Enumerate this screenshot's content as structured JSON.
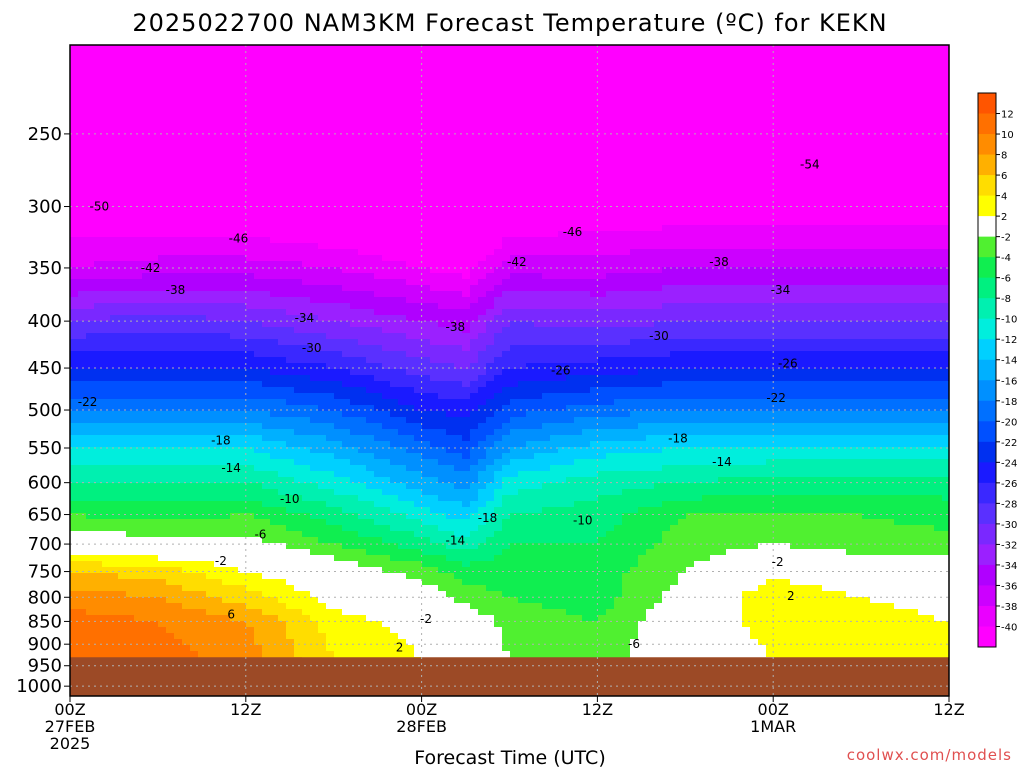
{
  "chart_data": {
    "type": "heatmap",
    "title": "2025022700 NAM3KM Forecast Temperature (ºC) for KEKN",
    "xlabel": "Forecast Time (UTC)",
    "ylabel": "",
    "x_ticks": [
      {
        "time_hours": 0,
        "lines": [
          "00Z",
          "27FEB",
          "2025"
        ]
      },
      {
        "time_hours": 12,
        "lines": [
          "12Z"
        ]
      },
      {
        "time_hours": 24,
        "lines": [
          "00Z",
          "28FEB"
        ]
      },
      {
        "time_hours": 36,
        "lines": [
          "12Z"
        ]
      },
      {
        "time_hours": 48,
        "lines": [
          "00Z",
          "1MAR"
        ]
      },
      {
        "time_hours": 60,
        "lines": [
          "12Z"
        ]
      }
    ],
    "xlim": [
      0,
      60
    ],
    "y_ticks": [
      250,
      300,
      350,
      400,
      450,
      500,
      550,
      600,
      650,
      700,
      750,
      800,
      850,
      900,
      950,
      1000
    ],
    "ylim_hpa": [
      200,
      1025
    ],
    "y_scale": "log-pressure",
    "grid": true,
    "surface_pressure_hpa": 930,
    "colorbar": {
      "placement": "right",
      "bounds": [
        -42,
        -40,
        -38,
        -36,
        -34,
        -32,
        -30,
        -28,
        -26,
        -24,
        -22,
        -20,
        -18,
        -16,
        -14,
        -12,
        -10,
        -8,
        -6,
        -4,
        -2,
        2,
        4,
        6,
        8,
        10,
        12,
        14
      ],
      "labels": [
        "12",
        "10",
        "8",
        "6",
        "4",
        "2",
        "-2",
        "-4",
        "-6",
        "-8",
        "-10",
        "-12",
        "-14",
        "-16",
        "-18",
        "-20",
        "-22",
        "-24",
        "-26",
        "-28",
        "-30",
        "-32",
        "-34",
        "-36",
        "-38",
        "-40"
      ],
      "colors": [
        "#ff00ff",
        "#ea00ff",
        "#cc00ff",
        "#b000ff",
        "#9b20ff",
        "#7a28ff",
        "#5a30ff",
        "#3a28ff",
        "#1a1aff",
        "#0030f0",
        "#0050ff",
        "#0070ff",
        "#0090ff",
        "#00b0ff",
        "#00d0ff",
        "#00eedd",
        "#00f0b0",
        "#00f080",
        "#10ee50",
        "#50f030",
        "#ffffff",
        "#ffff00",
        "#ffdd00",
        "#ffb000",
        "#ff8c00",
        "#ff7000",
        "#ff5500"
      ]
    },
    "series": [
      {
        "time_hours": 0,
        "temps": [
          -55,
          -50,
          -42,
          -38,
          -30,
          -24,
          -18,
          -12,
          -8,
          -4,
          0,
          6,
          9,
          11,
          12
        ]
      },
      {
        "time_hours": 6,
        "temps": [
          -55,
          -50,
          -43,
          -37,
          -29,
          -24,
          -18,
          -12,
          -8,
          -5,
          -1,
          5,
          8,
          10,
          11
        ]
      },
      {
        "time_hours": 12,
        "temps": [
          -55,
          -50,
          -43,
          -37,
          -30,
          -24,
          -18,
          -12,
          -8,
          -4,
          -1,
          2,
          5,
          8,
          9
        ]
      },
      {
        "time_hours": 18,
        "temps": [
          -54,
          -49,
          -44,
          -38,
          -32,
          -26,
          -20,
          -15,
          -11,
          -7,
          -4,
          0,
          1,
          3,
          4
        ]
      },
      {
        "time_hours": 24,
        "temps": [
          -54,
          -49,
          -45,
          -40,
          -34,
          -29,
          -24,
          -19,
          -15,
          -11,
          -7,
          -3,
          0,
          1,
          2
        ]
      },
      {
        "time_hours": 27,
        "temps": [
          -54,
          -49,
          -45,
          -41,
          -35,
          -30,
          -25,
          -21,
          -17,
          -13,
          -9,
          -5,
          -3,
          0,
          1
        ]
      },
      {
        "time_hours": 30,
        "temps": [
          -52,
          -47,
          -43,
          -37,
          -30,
          -26,
          -21,
          -16,
          -11,
          -8,
          -6,
          -5,
          -4,
          -3,
          -2
        ]
      },
      {
        "time_hours": 36,
        "temps": [
          -53,
          -48,
          -42,
          -37,
          -31,
          -25,
          -19,
          -13,
          -9,
          -7,
          -6,
          -5,
          -5,
          -4,
          -3
        ]
      },
      {
        "time_hours": 42,
        "temps": [
          -54,
          -49,
          -42,
          -36,
          -30,
          -24,
          -18,
          -12,
          -8,
          -4,
          -3,
          -2,
          -1,
          0,
          0
        ]
      },
      {
        "time_hours": 48,
        "temps": [
          -54,
          -49,
          -42,
          -36,
          -30,
          -24,
          -18,
          -12,
          -7,
          -4,
          -2,
          1,
          4,
          3,
          2
        ]
      },
      {
        "time_hours": 54,
        "temps": [
          -54,
          -49,
          -42,
          -36,
          -30,
          -24,
          -18,
          -12,
          -7,
          -4,
          -3,
          0,
          2,
          3,
          3
        ]
      },
      {
        "time_hours": 60,
        "temps": [
          -54,
          -49,
          -42,
          -36,
          -30,
          -24,
          -18,
          -12,
          -7,
          -5,
          -3,
          -1,
          1,
          2,
          2
        ]
      }
    ],
    "series_levels_hpa": [
      200,
      250,
      300,
      350,
      400,
      450,
      500,
      550,
      600,
      650,
      700,
      750,
      800,
      850,
      930
    ],
    "contour_levels": [
      -54,
      -50,
      -46,
      -42,
      -38,
      -34,
      -30,
      -26,
      -22,
      -18,
      -14,
      -10,
      -6,
      -2,
      2,
      6
    ],
    "annotations": [
      {
        "text": "-54",
        "time_hours": 50.5,
        "pressure": 270
      },
      {
        "text": "-50",
        "time_hours": 2,
        "pressure": 300
      },
      {
        "text": "-46",
        "time_hours": 11.5,
        "pressure": 325
      },
      {
        "text": "-46",
        "time_hours": 34.3,
        "pressure": 320
      },
      {
        "text": "-42",
        "time_hours": 5.5,
        "pressure": 350
      },
      {
        "text": "-42",
        "time_hours": 30.5,
        "pressure": 345
      },
      {
        "text": "-38",
        "time_hours": 44.3,
        "pressure": 345
      },
      {
        "text": "-38",
        "time_hours": 7.2,
        "pressure": 370
      },
      {
        "text": "-34",
        "time_hours": 48.5,
        "pressure": 370
      },
      {
        "text": "-34",
        "time_hours": 16,
        "pressure": 397
      },
      {
        "text": "-38",
        "time_hours": 26.3,
        "pressure": 406
      },
      {
        "text": "-30",
        "time_hours": 40.2,
        "pressure": 415
      },
      {
        "text": "-30",
        "time_hours": 16.5,
        "pressure": 428
      },
      {
        "text": "-26",
        "time_hours": 33.5,
        "pressure": 453
      },
      {
        "text": "-26",
        "time_hours": 49,
        "pressure": 445
      },
      {
        "text": "-22",
        "time_hours": 1.2,
        "pressure": 490
      },
      {
        "text": "-22",
        "time_hours": 48.2,
        "pressure": 485
      },
      {
        "text": "-18",
        "time_hours": 10.3,
        "pressure": 540
      },
      {
        "text": "-18",
        "time_hours": 41.5,
        "pressure": 537
      },
      {
        "text": "-14",
        "time_hours": 11,
        "pressure": 578
      },
      {
        "text": "-14",
        "time_hours": 44.5,
        "pressure": 570
      },
      {
        "text": "-10",
        "time_hours": 15,
        "pressure": 625
      },
      {
        "text": "-10",
        "time_hours": 35,
        "pressure": 660
      },
      {
        "text": "-18",
        "time_hours": 28.5,
        "pressure": 656
      },
      {
        "text": "-6",
        "time_hours": 13,
        "pressure": 683
      },
      {
        "text": "-14",
        "time_hours": 26.3,
        "pressure": 694
      },
      {
        "text": "-2",
        "time_hours": 10.3,
        "pressure": 730
      },
      {
        "text": "-2",
        "time_hours": 48.3,
        "pressure": 732
      },
      {
        "text": "2",
        "time_hours": 49.2,
        "pressure": 797
      },
      {
        "text": "6",
        "time_hours": 11,
        "pressure": 835
      },
      {
        "text": "-2",
        "time_hours": 24.3,
        "pressure": 845
      },
      {
        "text": "2",
        "time_hours": 22.5,
        "pressure": 908
      },
      {
        "text": "-6",
        "time_hours": 38.5,
        "pressure": 900
      }
    ],
    "watermark": "coolwx.com/models"
  }
}
